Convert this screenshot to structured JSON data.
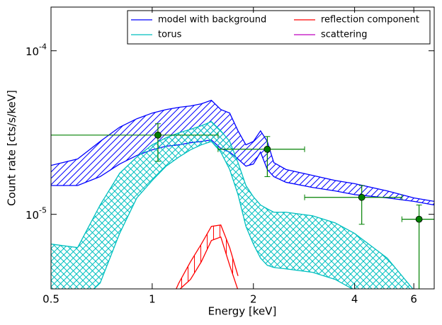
{
  "chart_data": {
    "type": "band",
    "xlabel": "Energy [keV]",
    "ylabel": "Count rate [cts/s/keV]",
    "xscale": "log",
    "yscale": "log",
    "xlim": [
      0.5,
      6.9
    ],
    "ylim": [
      3.5e-06,
      0.000185
    ],
    "xticks": [
      0.5,
      1,
      2,
      4,
      6
    ],
    "yticks": [
      {
        "value": 1e-05,
        "label": "10^-5"
      },
      {
        "value": 0.0001,
        "label": "10^-4"
      }
    ],
    "legend": "upper right",
    "x": [
      0.5,
      0.6,
      0.7,
      0.8,
      0.9,
      1.0,
      1.1,
      1.2,
      1.3,
      1.4,
      1.5,
      1.6,
      1.7,
      1.8,
      1.9,
      2.0,
      2.1,
      2.2,
      2.3,
      2.5,
      3.0,
      3.5,
      4,
      5,
      6,
      6.9
    ],
    "series": [
      {
        "name": "model with background",
        "color": "#0000ff",
        "hatch": "/",
        "upper": [
          1.99e-05,
          2.18e-05,
          2.79e-05,
          3.41e-05,
          3.84e-05,
          4.16e-05,
          4.37e-05,
          4.51e-05,
          4.6e-05,
          4.74e-05,
          4.98e-05,
          4.37e-05,
          4.16e-05,
          3.24e-05,
          2.66e-05,
          2.79e-05,
          3.24e-05,
          2.79e-05,
          2.07e-05,
          1.88e-05,
          1.73e-05,
          1.61e-05,
          1.54e-05,
          1.39e-05,
          1.26e-05,
          1.2e-05
        ],
        "lower": [
          1.5e-05,
          1.5e-05,
          1.7e-05,
          2.03e-05,
          2.29e-05,
          2.48e-05,
          2.61e-05,
          2.66e-05,
          2.74e-05,
          2.79e-05,
          2.85e-05,
          2.53e-05,
          2.4e-05,
          2.18e-05,
          1.97e-05,
          2.03e-05,
          2.4e-05,
          1.88e-05,
          1.7e-05,
          1.57e-05,
          1.46e-05,
          1.39e-05,
          1.32e-05,
          1.26e-05,
          1.2e-05,
          1.14e-05
        ]
      },
      {
        "name": "torus",
        "color": "#00bfbf",
        "hatch": "x",
        "upper": [
          6.58e-06,
          6.26e-06,
          1.14e-05,
          1.78e-05,
          2.24e-05,
          2.66e-05,
          2.94e-05,
          3.15e-05,
          3.31e-05,
          3.48e-05,
          3.69e-05,
          3.24e-05,
          2.79e-05,
          2.07e-05,
          1.5e-05,
          1.28e-05,
          1.14e-05,
          1.08e-05,
          1.03e-05,
          1.03e-05,
          9.8e-06,
          8.87e-06,
          7.64e-06,
          5.4e-06,
          3.44e-06,
          3.12e-06
        ],
        "lower": [
          2.82e-06,
          2.82e-06,
          3.8e-06,
          7.64e-06,
          1.26e-05,
          1.61e-05,
          1.97e-05,
          2.24e-05,
          2.48e-05,
          2.66e-05,
          2.79e-05,
          2.4e-05,
          1.88e-05,
          1.32e-05,
          8.44e-06,
          6.58e-06,
          5.4e-06,
          4.88e-06,
          4.73e-06,
          4.64e-06,
          4.42e-06,
          4e-06,
          3.44e-06,
          2.82e-06,
          2.09e-06,
          1.71e-06
        ]
      },
      {
        "name": "reflection component",
        "color": "#ff0000",
        "hatch": "|",
        "upper": [
          null,
          null,
          null,
          null,
          null,
          null,
          2.55e-06,
          3.8e-06,
          5.13e-06,
          6.58e-06,
          8.44e-06,
          8.61e-06,
          6.26e-06,
          4.2e-06,
          null,
          null,
          null,
          null,
          null,
          null,
          null,
          null,
          null,
          null,
          null,
          null
        ],
        "lower": [
          null,
          null,
          null,
          null,
          null,
          null,
          2.09e-06,
          3.44e-06,
          4e-06,
          5.13e-06,
          6.92e-06,
          7.27e-06,
          4.88e-06,
          3.44e-06,
          null,
          null,
          null,
          null,
          null,
          null,
          null,
          null,
          null,
          null,
          null,
          null
        ]
      },
      {
        "name": "scattering",
        "color": "#bf00bf"
      }
    ],
    "data_points": {
      "color": "#008000",
      "x": [
        1.04,
        2.2,
        4.2,
        6.22
      ],
      "xlow": [
        0.5,
        1.57,
        2.84,
        5.53
      ],
      "xhigh": [
        1.57,
        2.84,
        5.53,
        6.9
      ],
      "values": [
        3.05e-05,
        2.5e-05,
        1.27e-05,
        9.33e-06
      ],
      "ylow": [
        2.11e-05,
        1.7e-05,
        8.69e-06,
        3.12e-06
      ],
      "yhigh": [
        3.58e-05,
        2.99e-05,
        1.5e-05,
        1.14e-05
      ]
    }
  }
}
